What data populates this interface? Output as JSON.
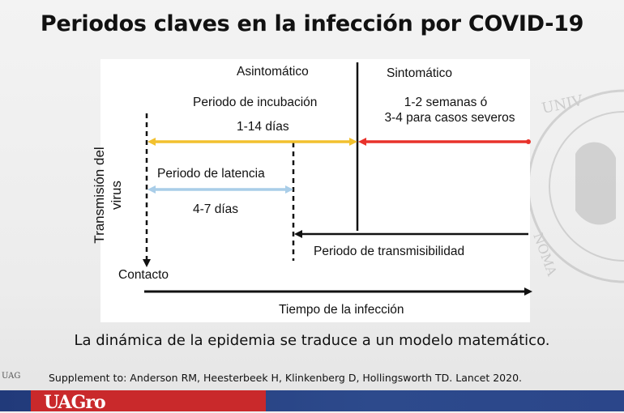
{
  "title": "Periodos claves en la infección por COVID-19",
  "diagram": {
    "y_axis_label_line1": "Transmisión del",
    "y_axis_label_line2": "virus",
    "asintomatico": "Asintomático",
    "sintomatico": "Sintomático",
    "incubacion_label": "Periodo de incubación",
    "incubacion_days": "1-14 días",
    "sintomatico_line1": "1-2 semanas ó",
    "sintomatico_line2": "3-4 para casos severos",
    "latencia_label": "Periodo de latencia",
    "latencia_days": "4-7 días",
    "transmisibilidad_label": "Periodo de transmisibilidad",
    "contacto_label": "Contacto",
    "x_axis_label": "Tiempo de la infección",
    "colors": {
      "incubacion_arrow": "#f2c12e",
      "sintomatico_arrow": "#e8322b",
      "latencia_arrow": "#a9cde8",
      "lines": "#111111"
    }
  },
  "caption": "La dinámica de la epidemia se traduce a un modelo matemático.",
  "reference": "Supplement to: Anderson RM, Heesterbeek H, Klinkenberg D, Hollingsworth TD. Lancet 2020.",
  "footer": {
    "logo": "UAGro",
    "small_logo": "UAG"
  },
  "watermark_text": "UNIVERSIDAD AUTONOMA"
}
